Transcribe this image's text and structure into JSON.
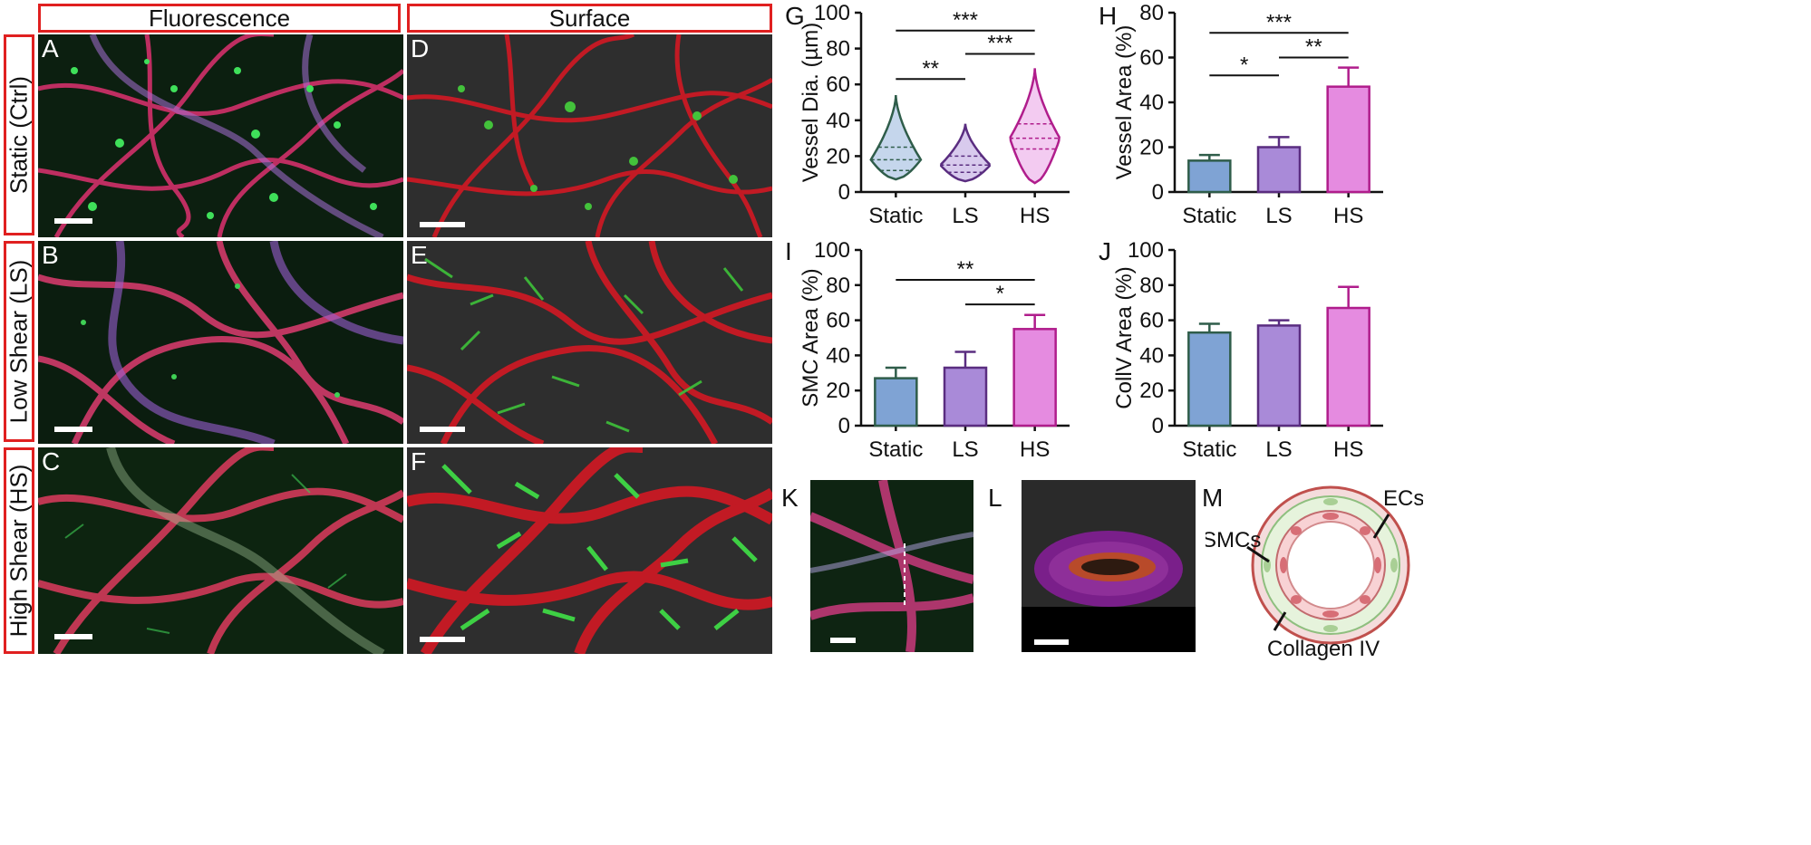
{
  "headers": {
    "fluorescence": "Fluorescence",
    "surface": "Surface"
  },
  "rows": [
    "Static (Ctrl)",
    "Low Shear (LS)",
    "High Shear (HS)"
  ],
  "panel_letters": {
    "A": "A",
    "B": "B",
    "C": "C",
    "D": "D",
    "E": "E",
    "F": "F",
    "G": "G",
    "H": "H",
    "I": "I",
    "J": "J",
    "K": "K",
    "L": "L",
    "M": "M"
  },
  "colors": {
    "static": "#7fa3d4",
    "ls": "#a98ad8",
    "hs": "#e58be0",
    "static_edge": "#2f5d4a",
    "ls_edge": "#5a2d80",
    "hs_edge": "#b01d8c",
    "frame": "#e02020"
  },
  "chart_data": [
    {
      "panel": "G",
      "type": "violin",
      "categories": [
        "Static",
        "LS",
        "HS"
      ],
      "ylabel": "Vessel Dia. (µm)",
      "ylim": [
        0,
        100
      ],
      "yticks": [
        0,
        20,
        40,
        60,
        80,
        100
      ],
      "violins": [
        {
          "name": "Static",
          "min": 7,
          "q1": 12,
          "median": 18,
          "q3": 25,
          "max": 54
        },
        {
          "name": "LS",
          "min": 6,
          "q1": 11,
          "median": 15,
          "q3": 20,
          "max": 38
        },
        {
          "name": "HS",
          "min": 5,
          "q1": 24,
          "median": 30,
          "q3": 38,
          "max": 69
        }
      ],
      "significance": [
        {
          "from": 0,
          "to": 2,
          "label": "***",
          "y": 90
        },
        {
          "from": 1,
          "to": 2,
          "label": "***",
          "y": 77
        },
        {
          "from": 0,
          "to": 1,
          "label": "**",
          "y": 63
        }
      ]
    },
    {
      "panel": "H",
      "type": "bar",
      "categories": [
        "Static",
        "LS",
        "HS"
      ],
      "values": [
        14,
        20,
        47
      ],
      "errors": [
        2.5,
        4.5,
        8.5
      ],
      "ylabel": "Vessel Area (%)",
      "ylim": [
        0,
        80
      ],
      "yticks": [
        0,
        20,
        40,
        60,
        80
      ],
      "significance": [
        {
          "from": 0,
          "to": 2,
          "label": "***",
          "y": 71
        },
        {
          "from": 1,
          "to": 2,
          "label": "**",
          "y": 60
        },
        {
          "from": 0,
          "to": 1,
          "label": "*",
          "y": 52
        }
      ]
    },
    {
      "panel": "I",
      "type": "bar",
      "categories": [
        "Static",
        "LS",
        "HS"
      ],
      "values": [
        27,
        33,
        55
      ],
      "errors": [
        6,
        9,
        8
      ],
      "ylabel": "SMC Area (%)",
      "ylim": [
        0,
        100
      ],
      "yticks": [
        0,
        20,
        40,
        60,
        80,
        100
      ],
      "significance": [
        {
          "from": 0,
          "to": 2,
          "label": "**",
          "y": 83
        },
        {
          "from": 1,
          "to": 2,
          "label": "*",
          "y": 69
        }
      ]
    },
    {
      "panel": "J",
      "type": "bar",
      "categories": [
        "Static",
        "LS",
        "HS"
      ],
      "values": [
        53,
        57,
        67
      ],
      "errors": [
        5,
        3,
        12
      ],
      "ylabel": "CollV Area (%)",
      "ylim": [
        0,
        100
      ],
      "yticks": [
        0,
        20,
        40,
        60,
        80,
        100
      ],
      "significance": []
    }
  ],
  "diagram_labels": {
    "ecs": "ECs",
    "smcs": "SMCs",
    "collagen": "Collagen IV"
  }
}
